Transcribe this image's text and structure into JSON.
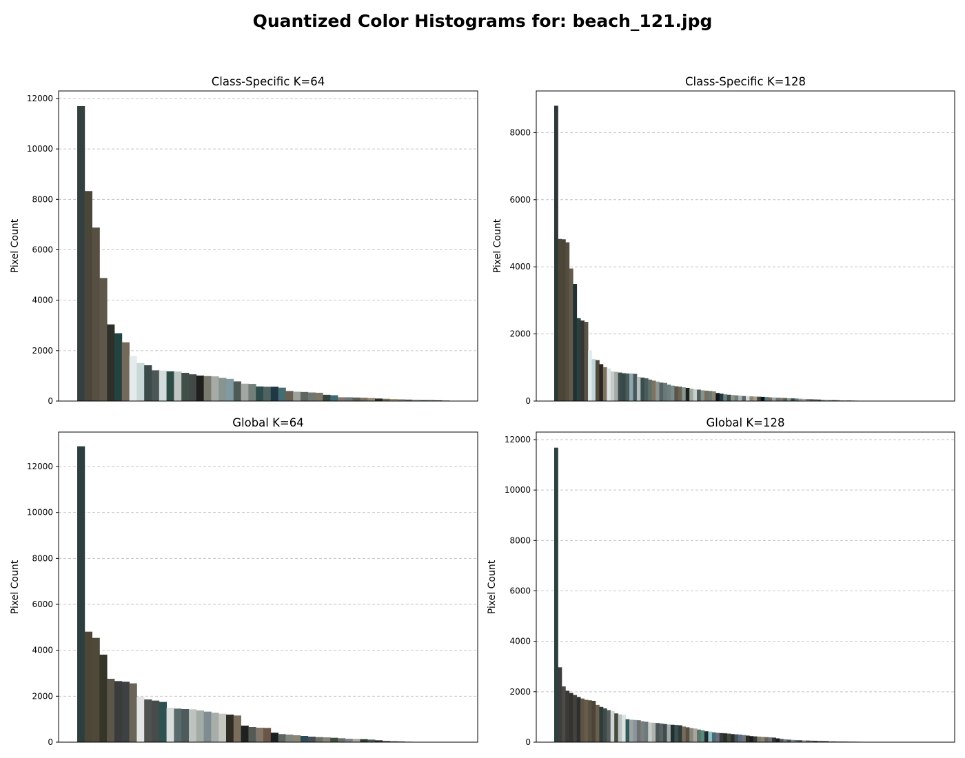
{
  "suptitle": "Quantized Color Histograms for: beach_121.jpg",
  "chart_data": [
    {
      "type": "bar",
      "title": "Class-Specific K=64",
      "xlabel": "",
      "ylabel": "Pixel Count",
      "ylim": [
        0,
        12300
      ],
      "yticks": [
        0,
        2000,
        4000,
        6000,
        8000,
        10000,
        12000
      ],
      "grid": "y-dashed",
      "values": [
        11700,
        8330,
        6880,
        4880,
        3040,
        2690,
        2330,
        1790,
        1510,
        1420,
        1220,
        1210,
        1180,
        1170,
        1120,
        1060,
        1010,
        990,
        980,
        920,
        880,
        780,
        690,
        680,
        580,
        570,
        570,
        530,
        400,
        370,
        360,
        340,
        330,
        250,
        230,
        150,
        150,
        140,
        130,
        120,
        100,
        90,
        80,
        70,
        60,
        50,
        40,
        40,
        30,
        20
      ],
      "colors": [
        "#34403f",
        "#4a473a",
        "#564f42",
        "#5f584a",
        "#2f2f2a",
        "#234341",
        "#74695a",
        "#e4ebea",
        "#c9d9da",
        "#3b4b4c",
        "#4c5655",
        "#d2dcdc",
        "#2f4b45",
        "#bfc6c4",
        "#405048",
        "#424946",
        "#1f201e",
        "#7a7a6e",
        "#a6aba6",
        "#88948f",
        "#819aa1",
        "#4d5a58",
        "#a3a7a2",
        "#727f7a",
        "#2d4c4b",
        "#4f6460",
        "#1e3844",
        "#456b73",
        "#6a6052",
        "#9fa19b",
        "#5f6762",
        "#6e7870",
        "#7e7763",
        "#34443f",
        "#3f6872",
        "#83786d",
        "#6f7975",
        "#5b5f56",
        "#7b6f5e",
        "#908674",
        "#2e2c28",
        "#6b7460",
        "#a38e6b",
        "#7c8378",
        "#5c6b6b",
        "#8f8c7d",
        "#485c5e",
        "#59706a",
        "#37484a",
        "#424a44"
      ]
    },
    {
      "type": "bar",
      "title": "Class-Specific K=128",
      "xlabel": "",
      "ylabel": "Pixel Count",
      "ylim": [
        0,
        9240
      ],
      "yticks": [
        0,
        2000,
        4000,
        6000,
        8000
      ],
      "grid": "y-dashed",
      "values": [
        8800,
        4830,
        4820,
        4730,
        3950,
        3490,
        2470,
        2400,
        2360,
        1510,
        1250,
        1220,
        1100,
        1010,
        970,
        880,
        870,
        850,
        830,
        820,
        820,
        810,
        720,
        700,
        680,
        640,
        610,
        580,
        550,
        540,
        490,
        460,
        440,
        430,
        410,
        390,
        370,
        350,
        340,
        320,
        310,
        300,
        290,
        240,
        220,
        200,
        190,
        180,
        170,
        160,
        150,
        145,
        140,
        135,
        130,
        125,
        120,
        110,
        105,
        100,
        95,
        90,
        85,
        80,
        75,
        70,
        65,
        60,
        55,
        50,
        45,
        40,
        35,
        30,
        28,
        25,
        22,
        20,
        18,
        15,
        12,
        10
      ],
      "colors": [
        "#2d3739",
        "#4c4738",
        "#4a4536",
        "#544d3f",
        "#625a4b",
        "#22302f",
        "#2a4140",
        "#363534",
        "#5a5448",
        "#e2ebeb",
        "#c2d5d8",
        "#4e4a3d",
        "#2b2620",
        "#7d7160",
        "#dde3e2",
        "#c6cdc9",
        "#a3aaa8",
        "#3c4b4b",
        "#394747",
        "#4a5b5b",
        "#8fa6ac",
        "#47595c",
        "#b6bfbd",
        "#3a4d4d",
        "#4b5c5b",
        "#5f6f6b",
        "#7e7260",
        "#8b9692",
        "#53625f",
        "#67797a",
        "#6f7f7d",
        "#7a8c8a",
        "#5b5448",
        "#6b6353",
        "#8a9690",
        "#1c2220",
        "#a2a9a3",
        "#c8d0ce",
        "#4c5d5a",
        "#88928c",
        "#75705f",
        "#6b7873",
        "#8a8273",
        "#10161a",
        "#243c3d",
        "#6b7f83",
        "#3e4c47",
        "#8e958d",
        "#6e7d7b",
        "#a9b2ae",
        "#5b646f",
        "#d3d8d5",
        "#8d8573",
        "#a89f8b",
        "#3b4a45",
        "#0e0f10",
        "#567a7b",
        "#7b6b5a",
        "#9ba6a2",
        "#647672",
        "#7f7766",
        "#4f5f5a",
        "#98928a",
        "#2f4b4f",
        "#5d7672",
        "#909aa0",
        "#b1ab9a",
        "#727e78",
        "#4e615f",
        "#605c54",
        "#345755",
        "#7c868a",
        "#9c9e93",
        "#6d766f",
        "#3d4f4e",
        "#51665f",
        "#8a9a98",
        "#a5988a",
        "#46534f",
        "#657270",
        "#5c6867",
        "#7a8180"
      ]
    },
    {
      "type": "bar",
      "title": "Global K=64",
      "xlabel": "",
      "ylabel": "Pixel Count",
      "ylim": [
        0,
        13500
      ],
      "yticks": [
        0,
        2000,
        4000,
        6000,
        8000,
        10000,
        12000
      ],
      "grid": "y-dashed",
      "values": [
        12880,
        4810,
        4540,
        3810,
        2760,
        2660,
        2630,
        2560,
        1980,
        1860,
        1810,
        1750,
        1500,
        1460,
        1440,
        1430,
        1380,
        1330,
        1280,
        1240,
        1200,
        1160,
        720,
        660,
        630,
        620,
        410,
        350,
        330,
        300,
        270,
        240,
        220,
        210,
        190,
        170,
        150,
        140,
        130,
        110,
        80,
        60,
        40,
        30,
        20,
        15,
        10,
        5
      ],
      "colors": [
        "#2c3e3e",
        "#4d4637",
        "#4f493a",
        "#353528",
        "#5b5649",
        "#3a3b3b",
        "#3e4042",
        "#6b6558",
        "#e3e6e4",
        "#505250",
        "#474b49",
        "#2e5250",
        "#d8dcda",
        "#596b6b",
        "#4e5b5d",
        "#bfc3bf",
        "#a3aba6",
        "#7f8c92",
        "#a7aea9",
        "#c4c7bf",
        "#2e2c25",
        "#7a6d5c",
        "#1f2020",
        "#565a54",
        "#80766a",
        "#6b5646",
        "#1c1f20",
        "#5e6560",
        "#7f867f",
        "#8b8676",
        "#2c4d55",
        "#464e57",
        "#6a7367",
        "#86867a",
        "#3e4e3d",
        "#6a706a",
        "#7c8684",
        "#a7a7a0",
        "#2d3c30",
        "#49584b",
        "#2e2e2e",
        "#606460",
        "#50504d",
        "#3b3b39",
        "#5d5446",
        "#6c7a7c",
        "#3a4446",
        "#4b4b4b"
      ]
    },
    {
      "type": "bar",
      "title": "Global K=128",
      "xlabel": "",
      "ylabel": "Pixel Count",
      "ylim": [
        0,
        12300
      ],
      "yticks": [
        0,
        2000,
        4000,
        6000,
        8000,
        10000,
        12000
      ],
      "grid": "y-dashed",
      "values": [
        11680,
        2970,
        2210,
        2040,
        1950,
        1870,
        1790,
        1730,
        1680,
        1660,
        1640,
        1480,
        1400,
        1340,
        1270,
        1230,
        1140,
        1100,
        1090,
        910,
        890,
        880,
        870,
        830,
        810,
        780,
        770,
        760,
        740,
        720,
        700,
        690,
        680,
        670,
        620,
        590,
        560,
        540,
        500,
        470,
        430,
        420,
        390,
        370,
        360,
        350,
        340,
        320,
        310,
        300,
        280,
        260,
        240,
        230,
        220,
        210,
        200,
        190,
        180,
        150,
        130,
        110,
        100,
        90,
        80,
        75,
        70,
        65,
        60,
        55,
        50,
        45,
        40,
        35,
        30,
        28,
        26,
        24,
        22,
        20,
        18,
        16,
        14,
        12
      ],
      "colors": [
        "#2b4140",
        "#3c3d3c",
        "#4c4a46",
        "#3b3935",
        "#353331",
        "#45423d",
        "#2d2f30",
        "#5e5345",
        "#675c4c",
        "#57503f",
        "#4c4439",
        "#6a5e4c",
        "#2d3c38",
        "#3f4b4a",
        "#585f5b",
        "#cfd7d6",
        "#48493f",
        "#b9c3c2",
        "#dde2e0",
        "#315b5b",
        "#9ea3a0",
        "#8a959b",
        "#6d7172",
        "#7b807f",
        "#6c7a80",
        "#c8ccc7",
        "#aeb3ae",
        "#4c5559",
        "#5a6260",
        "#3d4c4c",
        "#a3aaa7",
        "#1e302f",
        "#3e4f50",
        "#2d3a39",
        "#776b5a",
        "#565046",
        "#8a867a",
        "#a7a5a0",
        "#5f7368",
        "#59897c",
        "#1d2a2e",
        "#90c3c6",
        "#4d6878",
        "#666f7a",
        "#323d3c",
        "#2a2c2a",
        "#3c4d39",
        "#2b2e2e",
        "#4b5452",
        "#5a6a8a",
        "#6b7672",
        "#2d2b27",
        "#1b1d1b",
        "#3a3a35",
        "#7c7b70",
        "#8b8373",
        "#65635b",
        "#6f7573",
        "#2e3434",
        "#1a2024",
        "#4c5a58",
        "#6b7a7b",
        "#47514f",
        "#7c8a90",
        "#5d6664",
        "#3e4544",
        "#a29a89",
        "#565b58",
        "#6a625a",
        "#2f3f3f",
        "#51605d",
        "#3b4241",
        "#283330",
        "#727a78",
        "#4a4d48",
        "#7d7a6d",
        "#5a5c57",
        "#3a4847",
        "#65706d",
        "#454b4b",
        "#535a58",
        "#6e6a63",
        "#3f3f3e",
        "#5c605c"
      ]
    }
  ]
}
